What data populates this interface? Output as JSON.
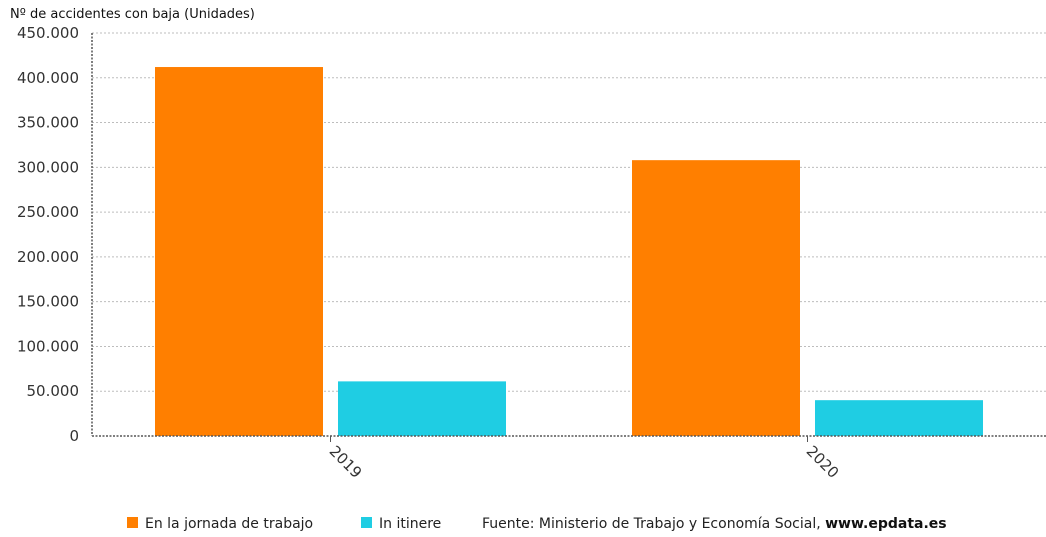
{
  "chart_data": {
    "type": "bar",
    "ylabel": "Nº de accidentes con baja (Unidades)",
    "categories": [
      "2019",
      "2020"
    ],
    "series": [
      {
        "name": "En la jornada de trabajo",
        "values": [
          412000,
          308000
        ],
        "color": "#ff7f00"
      },
      {
        "name": "In itinere",
        "values": [
          61000,
          40000
        ],
        "color": "#1fcde3"
      }
    ],
    "ylim": [
      0,
      450000
    ],
    "yticks": [
      0,
      50000,
      100000,
      150000,
      200000,
      250000,
      300000,
      350000,
      400000,
      450000
    ],
    "ytick_labels": [
      "0",
      "50.000",
      "100.000",
      "150.000",
      "200.000",
      "250.000",
      "300.000",
      "350.000",
      "400.000",
      "450.000"
    ],
    "grid": true,
    "legend_position": "bottom"
  },
  "source": {
    "prefix": "Fuente: Ministerio de Trabajo y Economía Social, ",
    "site": "www.epdata.es"
  }
}
